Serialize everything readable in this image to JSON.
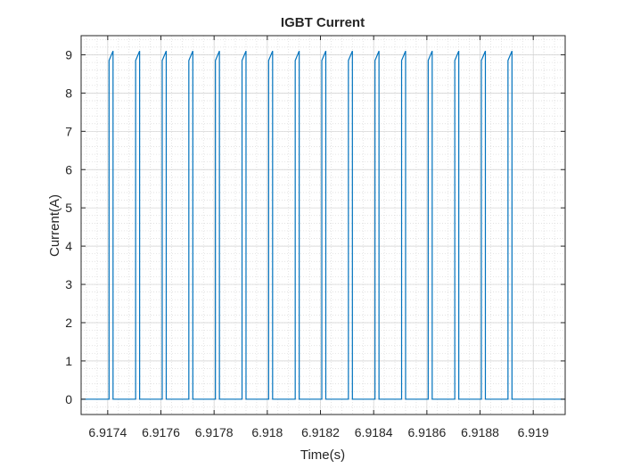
{
  "chart_data": {
    "type": "line",
    "title": "IGBT Current",
    "xlabel": "Time(s)",
    "ylabel": "Current(A)",
    "xlim": [
      6.9173,
      6.91912
    ],
    "ylim": [
      -0.4,
      9.5
    ],
    "grid": "on",
    "x_ticks": [
      {
        "value": 6.9174,
        "label": "6.9174"
      },
      {
        "value": 6.9176,
        "label": "6.9176"
      },
      {
        "value": 6.9178,
        "label": "6.9178"
      },
      {
        "value": 6.918,
        "label": "6.918"
      },
      {
        "value": 6.9182,
        "label": "6.9182"
      },
      {
        "value": 6.9184,
        "label": "6.9184"
      },
      {
        "value": 6.9186,
        "label": "6.9186"
      },
      {
        "value": 6.9188,
        "label": "6.9188"
      },
      {
        "value": 6.919,
        "label": "6.919"
      }
    ],
    "y_ticks": [
      {
        "value": 0,
        "label": "0"
      },
      {
        "value": 1,
        "label": "1"
      },
      {
        "value": 2,
        "label": "2"
      },
      {
        "value": 3,
        "label": "3"
      },
      {
        "value": 4,
        "label": "4"
      },
      {
        "value": 5,
        "label": "5"
      },
      {
        "value": 6,
        "label": "6"
      },
      {
        "value": 7,
        "label": "7"
      },
      {
        "value": 8,
        "label": "8"
      },
      {
        "value": 9,
        "label": "9"
      }
    ],
    "series": [
      {
        "color": "#0072bd",
        "pulse_on_current": [
          8.85,
          9.1
        ],
        "pulses": [
          {
            "rise": 6.917405,
            "fall": 6.91742
          },
          {
            "rise": 6.917505,
            "fall": 6.91752
          },
          {
            "rise": 6.917605,
            "fall": 6.91762
          },
          {
            "rise": 6.917705,
            "fall": 6.91772
          },
          {
            "rise": 6.917805,
            "fall": 6.91782
          },
          {
            "rise": 6.917905,
            "fall": 6.91792
          },
          {
            "rise": 6.918005,
            "fall": 6.91802
          },
          {
            "rise": 6.918105,
            "fall": 6.91812
          },
          {
            "rise": 6.918205,
            "fall": 6.91822
          },
          {
            "rise": 6.918305,
            "fall": 6.91832
          },
          {
            "rise": 6.918405,
            "fall": 6.91842
          },
          {
            "rise": 6.918505,
            "fall": 6.91852
          },
          {
            "rise": 6.918605,
            "fall": 6.91862
          },
          {
            "rise": 6.918705,
            "fall": 6.91872
          },
          {
            "rise": 6.918805,
            "fall": 6.91882
          },
          {
            "rise": 6.918905,
            "fall": 6.91892
          }
        ]
      }
    ]
  }
}
